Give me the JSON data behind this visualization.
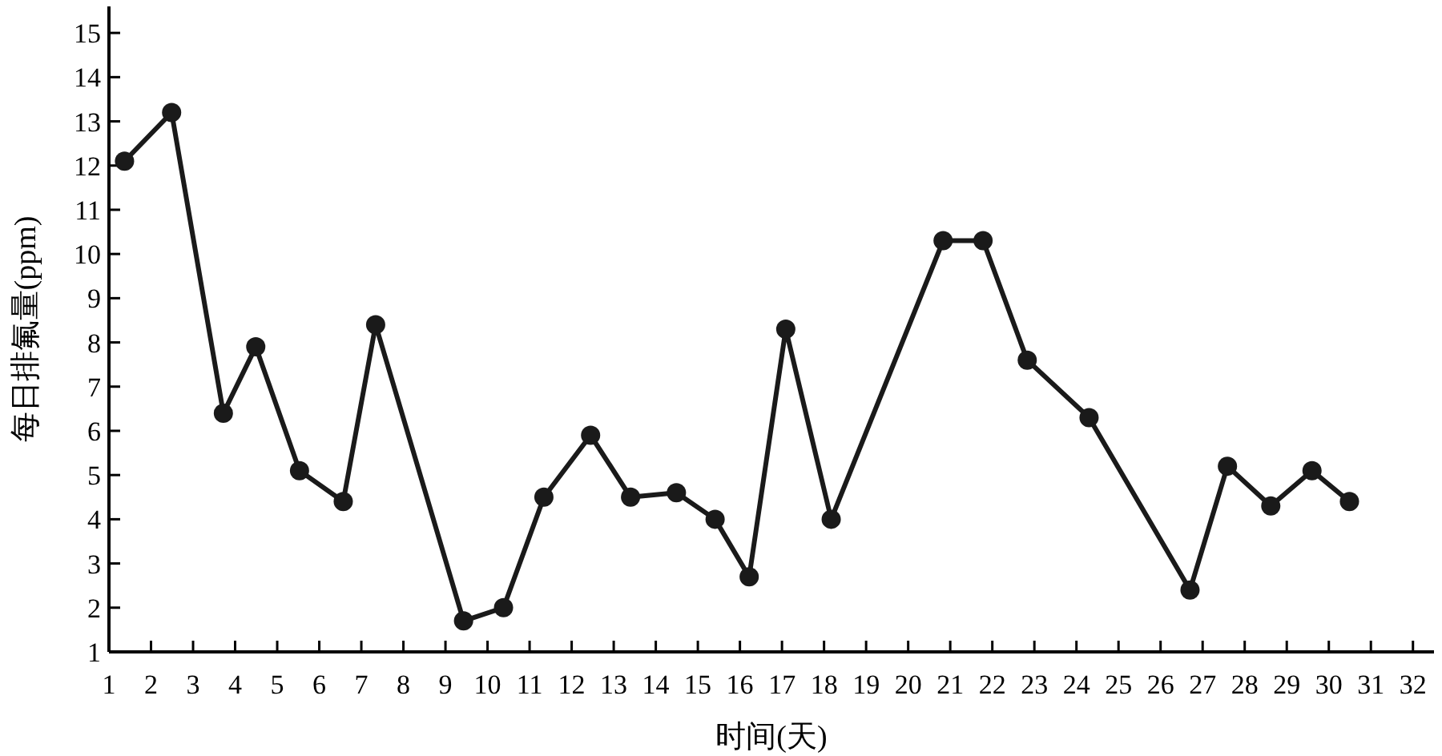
{
  "chart_data": {
    "type": "line",
    "xlabel": "时间(天)",
    "ylabel": "每日排氟量(ppm)",
    "x": [
      1.37,
      2.49,
      3.72,
      4.49,
      5.53,
      6.57,
      7.34,
      9.43,
      10.38,
      11.34,
      12.45,
      13.4,
      14.49,
      15.41,
      16.22,
      17.09,
      18.17,
      20.83,
      21.78,
      22.83,
      24.3,
      26.7,
      27.59,
      28.62,
      29.6,
      30.49
    ],
    "series": [
      {
        "color": "#1a1a1a",
        "values": [
          12.1,
          13.2,
          6.4,
          7.9,
          5.1,
          4.4,
          8.4,
          1.7,
          2.0,
          4.5,
          5.9,
          4.5,
          4.6,
          4.0,
          2.7,
          8.3,
          4.0,
          10.3,
          10.3,
          7.6,
          6.3,
          2.4,
          5.2,
          4.3,
          5.1,
          4.4
        ]
      }
    ],
    "xlim": [
      1,
      32.5
    ],
    "ylim": [
      1,
      15.6
    ],
    "xticks": [
      1,
      2,
      3,
      4,
      5,
      6,
      7,
      8,
      9,
      10,
      11,
      12,
      13,
      14,
      15,
      16,
      17,
      18,
      19,
      20,
      21,
      22,
      23,
      24,
      25,
      26,
      27,
      28,
      29,
      30,
      31,
      32
    ],
    "yticks": [
      1,
      2,
      3,
      4,
      5,
      6,
      7,
      8,
      9,
      10,
      11,
      12,
      13,
      14,
      15
    ],
    "marker": "circle",
    "line_style": "solid",
    "grid": false
  }
}
